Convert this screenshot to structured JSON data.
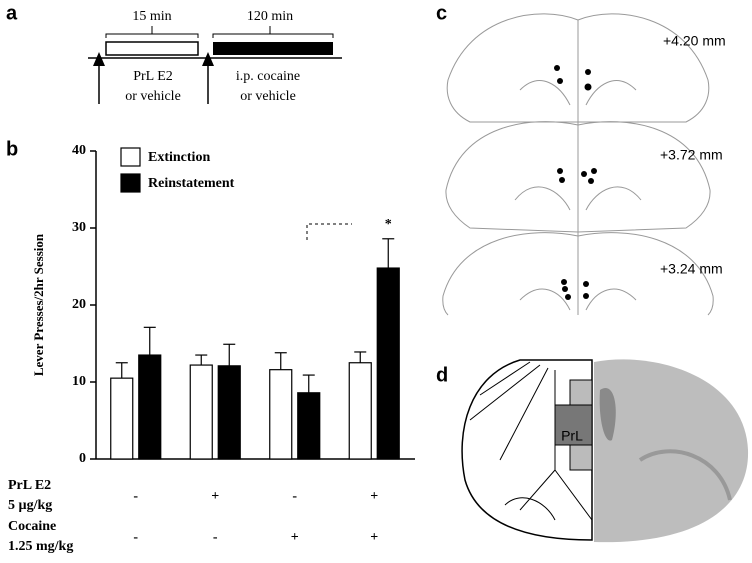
{
  "panel_labels": [
    "a",
    "b",
    "c",
    "d"
  ],
  "timeline": {
    "durations": [
      "15 min",
      "120 min"
    ],
    "treatment_1": [
      "PrL E2",
      "or vehicle"
    ],
    "treatment_2": [
      "i.p. cocaine",
      "or vehicle"
    ]
  },
  "chart_data": {
    "type": "bar",
    "y_label": "Lever Presses/2hr Session",
    "categories": [
      null,
      null,
      null,
      null
    ],
    "series": [
      {
        "name": "Extinction",
        "color": "#ffffff",
        "values": [
          10.5,
          12.2,
          11.6,
          12.5
        ],
        "errors": [
          2.0,
          1.3,
          2.2,
          1.4
        ]
      },
      {
        "name": "Reinstatement",
        "color": "#000000",
        "values": [
          13.5,
          12.1,
          8.6,
          24.8
        ],
        "errors": [
          3.6,
          2.8,
          2.3,
          3.8
        ]
      }
    ],
    "ylim": [
      0,
      40
    ],
    "yticks": [
      0,
      10,
      20,
      30,
      40
    ],
    "grid": false,
    "conditions": [
      {
        "label": [
          "PrL E2",
          "5 µg/kg"
        ],
        "signs": [
          "-",
          "+",
          "-",
          "+"
        ]
      },
      {
        "label": [
          "Cocaine",
          "1.25 mg/kg"
        ],
        "signs": [
          "-",
          "-",
          "+",
          "+"
        ]
      }
    ],
    "annotation": "*"
  },
  "sections": [
    "+4.20 mm",
    "+3.72 mm",
    "+3.24 mm"
  ],
  "atlas_label": "PrL"
}
